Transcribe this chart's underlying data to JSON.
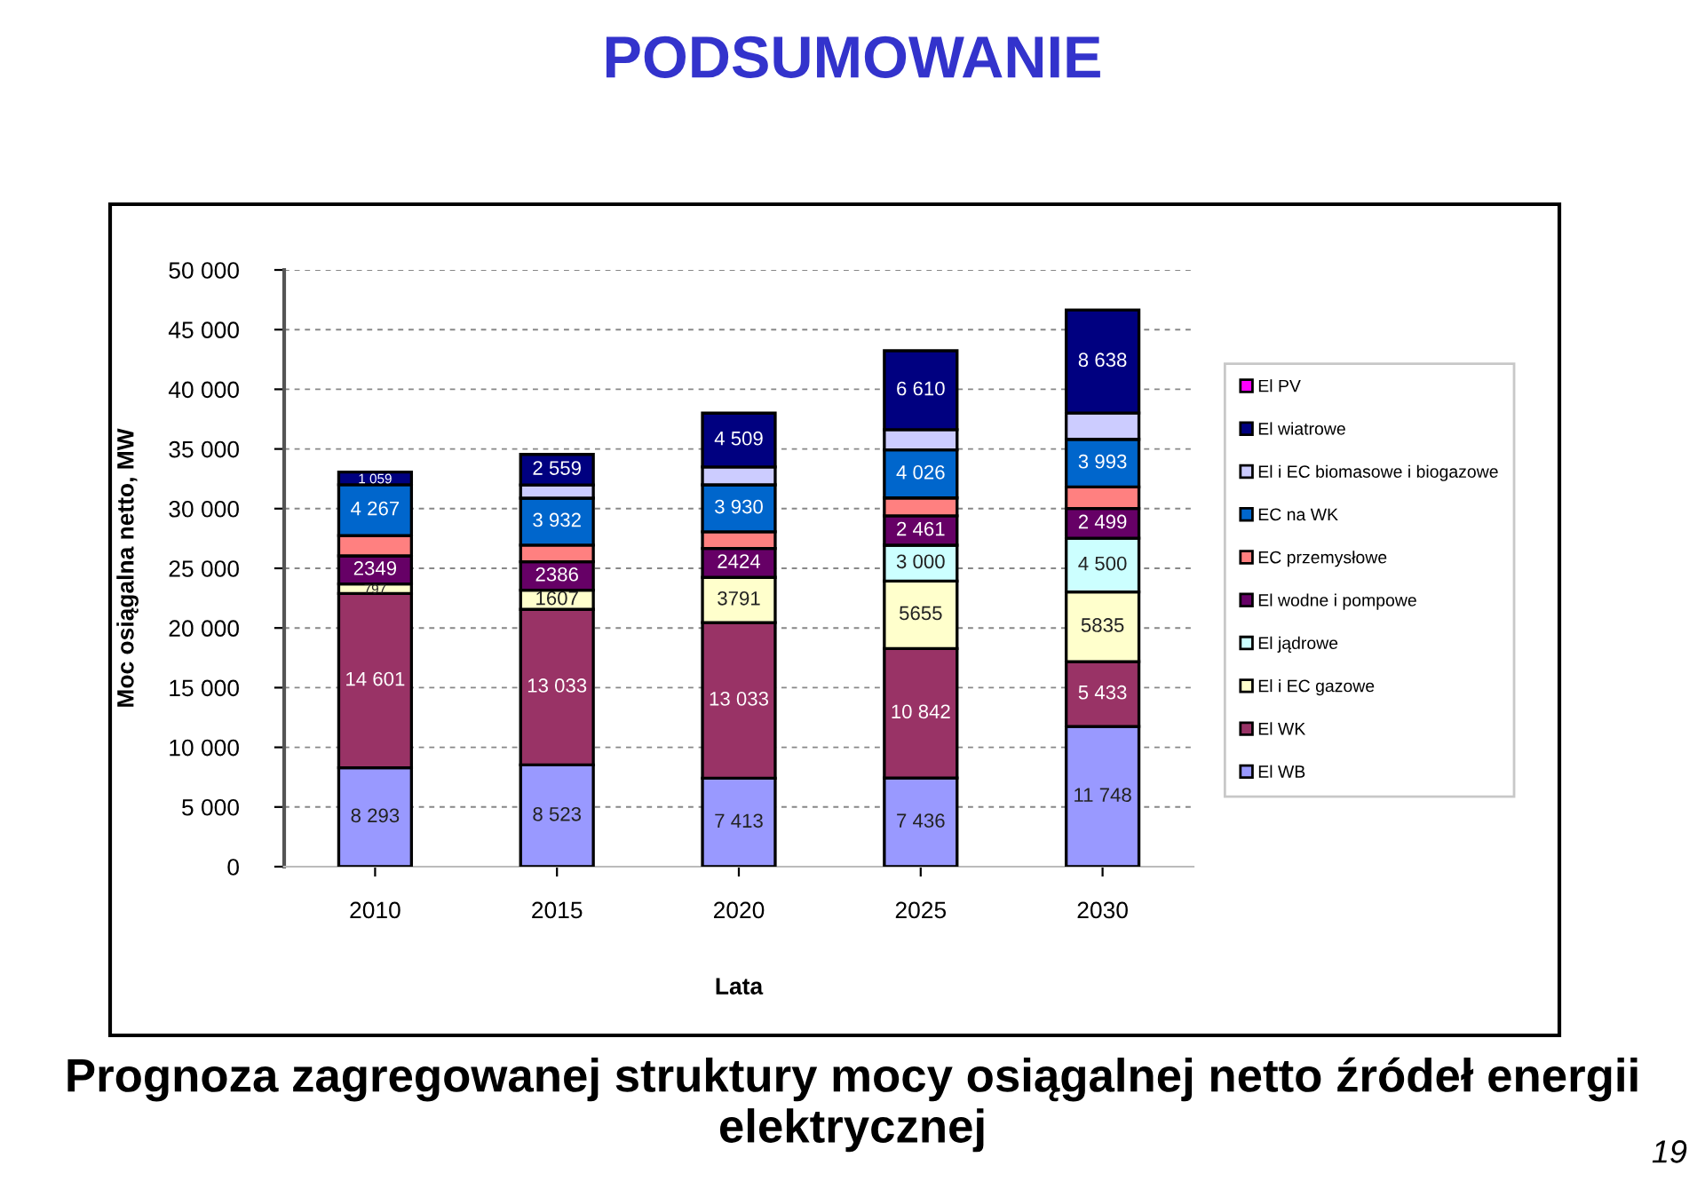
{
  "chart_data": {
    "type": "bar",
    "stacked": true,
    "title": "PODSUMOWANIE",
    "xlabel": "Lata",
    "ylabel": "Moc osiągalna netto, MW",
    "categories": [
      "2010",
      "2015",
      "2020",
      "2025",
      "2030"
    ],
    "series": [
      {
        "name": "El WB",
        "color": "#9999ff",
        "values": [
          8293,
          8523,
          7413,
          7436,
          11748
        ],
        "value_labels": [
          "8 293",
          "8 523",
          "7 413",
          "7 436",
          "11 748"
        ]
      },
      {
        "name": "El WK",
        "color": "#993366",
        "values": [
          14601,
          13033,
          13033,
          10842,
          5433
        ],
        "value_labels": [
          "14 601",
          "13 033",
          "13 033",
          "10 842",
          "5 433"
        ]
      },
      {
        "name": "El i EC gazowe",
        "color": "#ffffcc",
        "values": [
          797,
          1607,
          3791,
          5655,
          5835
        ],
        "value_labels": [
          "797",
          "1607",
          "3791",
          "5655",
          "5835"
        ]
      },
      {
        "name": "El jądrowe",
        "color": "#ccffff",
        "values": [
          null,
          null,
          null,
          3000,
          4500
        ],
        "value_labels": [
          null,
          null,
          null,
          "3 000",
          "4 500"
        ]
      },
      {
        "name": "El wodne i pompowe",
        "color": "#660066",
        "values": [
          2349,
          2386,
          2424,
          2461,
          2499
        ],
        "value_labels": [
          "2349",
          "2386",
          "2424",
          "2 461",
          "2 499"
        ]
      },
      {
        "name": "EC przemysłowe",
        "color": "#ff8080",
        "values": [
          1700,
          1400,
          1400,
          1500,
          1800
        ],
        "value_labels": [
          null,
          null,
          null,
          null,
          null
        ]
      },
      {
        "name": "EC na WK",
        "color": "#0066cc",
        "values": [
          4267,
          3932,
          3930,
          4026,
          3993
        ],
        "value_labels": [
          "4 267",
          "3 932",
          "3 930",
          "4 026",
          "3 993"
        ]
      },
      {
        "name": "El i EC biomasowe i biogazowe",
        "color": "#ccccff",
        "values": [
          null,
          1100,
          1500,
          1700,
          2200
        ],
        "value_labels": [
          null,
          null,
          null,
          null,
          null
        ]
      },
      {
        "name": "El wiatrowe",
        "color": "#000080",
        "values": [
          1059,
          2559,
          4509,
          6610,
          8638
        ],
        "value_labels": [
          "1 059",
          "2 559",
          "4 509",
          "6 610",
          "8 638"
        ]
      },
      {
        "name": "El PV",
        "color": "#ff00ff",
        "values": [
          null,
          null,
          null,
          null,
          null
        ],
        "value_labels": [
          null,
          null,
          null,
          null,
          null
        ]
      }
    ],
    "ylim": [
      0,
      50000
    ],
    "yticks": [
      {
        "value": 0,
        "label": "0"
      },
      {
        "value": 5000,
        "label": "5 000"
      },
      {
        "value": 10000,
        "label": "10 000"
      },
      {
        "value": 15000,
        "label": "15 000"
      },
      {
        "value": 20000,
        "label": "20 000"
      },
      {
        "value": 25000,
        "label": "25 000"
      },
      {
        "value": 30000,
        "label": "30 000"
      },
      {
        "value": 35000,
        "label": "35 000"
      },
      {
        "value": 40000,
        "label": "40 000"
      },
      {
        "value": 45000,
        "label": "45 000"
      },
      {
        "value": 50000,
        "label": "50 000"
      }
    ],
    "grid": "y",
    "legend": "right",
    "annotations": [
      "Prognoza zagregowanej struktury mocy osiągalnej netto źródeł energii elektrycznej",
      "19"
    ]
  }
}
